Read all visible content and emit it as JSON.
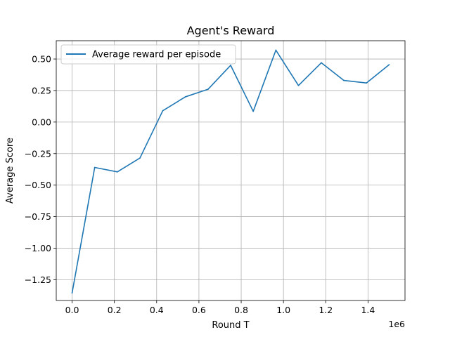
{
  "chart_data": {
    "type": "line",
    "title": "Agent's Reward",
    "xlabel": "Round T",
    "ylabel": "Average Score",
    "x_offset_label": "1e6",
    "xlim": [
      -0.075,
      1.575
    ],
    "ylim": [
      -1.415,
      0.645
    ],
    "x_ticks": [
      0.0,
      0.2,
      0.4,
      0.6,
      0.8,
      1.0,
      1.2,
      1.4
    ],
    "x_tick_labels": [
      "0.0",
      "0.2",
      "0.4",
      "0.6",
      "0.8",
      "1.0",
      "1.2",
      "1.4"
    ],
    "y_ticks": [
      -1.25,
      -1.0,
      -0.75,
      -0.5,
      -0.25,
      0.0,
      0.25,
      0.5
    ],
    "y_tick_labels": [
      "−1.25",
      "−1.00",
      "−0.75",
      "−0.50",
      "−0.25",
      "0.00",
      "0.25",
      "0.50"
    ],
    "grid": true,
    "legend_position": "top-left",
    "series": [
      {
        "name": "Average reward per episode",
        "color": "#1f77b4",
        "x": [
          0.0,
          0.107,
          0.214,
          0.321,
          0.429,
          0.536,
          0.643,
          0.75,
          0.857,
          0.964,
          1.071,
          1.179,
          1.286,
          1.393,
          1.5
        ],
        "y": [
          -1.355,
          -0.36,
          -0.395,
          -0.285,
          0.09,
          0.2,
          0.26,
          0.45,
          0.085,
          0.57,
          0.29,
          0.47,
          0.33,
          0.31,
          0.455
        ]
      }
    ]
  }
}
